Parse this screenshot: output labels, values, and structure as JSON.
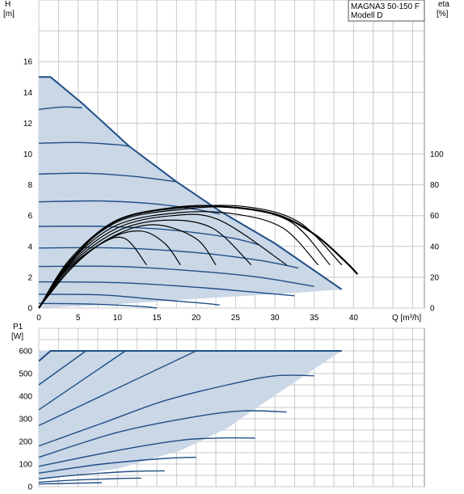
{
  "chart_data": [
    {
      "type": "line",
      "title": "MAGNA3 50-150 F",
      "subtitle": "Modell D",
      "xlabel": "Q [m³/h]",
      "ylabel": "H",
      "ylabel_unit": "[m]",
      "y2label": "eta",
      "y2label_unit": "[%]",
      "xlim": [
        0,
        49
      ],
      "ylim": [
        0,
        20
      ],
      "y2lim": [
        0,
        200
      ],
      "xticks": [
        "0",
        "5",
        "10",
        "15",
        "20",
        "25",
        "30",
        "35",
        "40"
      ],
      "yticks": [
        "0",
        "2",
        "4",
        "6",
        "8",
        "10",
        "12",
        "14",
        "16"
      ],
      "y2ticks": [
        "0",
        "20",
        "40",
        "60",
        "80",
        "100"
      ],
      "grid": true,
      "envelope": [
        [
          0,
          15
        ],
        [
          1.5,
          15
        ],
        [
          5.5,
          13.3
        ],
        [
          11.5,
          10.5
        ],
        [
          17.5,
          8.2
        ],
        [
          23,
          6.3
        ],
        [
          30,
          4.2
        ],
        [
          38.5,
          1.2
        ],
        [
          30,
          0.9
        ],
        [
          20,
          0.6
        ],
        [
          10,
          0.25
        ],
        [
          0,
          0
        ]
      ],
      "series": [
        {
          "values": [
            [
              0,
              15
            ],
            [
              1.5,
              15
            ],
            [
              5.5,
              13.3
            ],
            [
              11.5,
              10.5
            ],
            [
              17.5,
              8.2
            ],
            [
              23,
              6.3
            ],
            [
              30,
              4.2
            ],
            [
              38.5,
              1.2
            ]
          ]
        },
        {
          "values": [
            [
              0,
              12.9
            ],
            [
              3,
              13.05
            ],
            [
              5.5,
              13
            ]
          ]
        },
        {
          "values": [
            [
              0,
              10.7
            ],
            [
              5,
              10.75
            ],
            [
              10,
              10.6
            ],
            [
              11.5,
              10.5
            ]
          ]
        },
        {
          "values": [
            [
              0,
              8.7
            ],
            [
              6,
              8.75
            ],
            [
              12,
              8.55
            ],
            [
              17.5,
              8.2
            ]
          ]
        },
        {
          "values": [
            [
              0,
              6.9
            ],
            [
              8,
              6.95
            ],
            [
              15,
              6.75
            ],
            [
              20,
              6.4
            ],
            [
              23,
              6.1
            ]
          ]
        },
        {
          "values": [
            [
              0,
              5.3
            ],
            [
              8,
              5.3
            ],
            [
              16,
              5.1
            ],
            [
              24,
              4.6
            ],
            [
              28,
              4.1
            ]
          ]
        },
        {
          "values": [
            [
              0,
              3.9
            ],
            [
              10,
              3.9
            ],
            [
              20,
              3.6
            ],
            [
              28,
              3.1
            ],
            [
              33,
              2.6
            ]
          ]
        },
        {
          "values": [
            [
              0,
              2.7
            ],
            [
              10,
              2.7
            ],
            [
              20,
              2.4
            ],
            [
              28,
              2.0
            ],
            [
              35,
              1.4
            ]
          ]
        },
        {
          "values": [
            [
              0,
              1.7
            ],
            [
              10,
              1.65
            ],
            [
              20,
              1.35
            ],
            [
              28,
              1.0
            ],
            [
              32.5,
              0.8
            ]
          ]
        },
        {
          "values": [
            [
              0,
              0.9
            ],
            [
              8,
              0.85
            ],
            [
              14,
              0.6
            ],
            [
              20,
              0.35
            ],
            [
              23,
              0.2
            ]
          ]
        },
        {
          "values": [
            [
              0,
              0.3
            ],
            [
              7,
              0.25
            ],
            [
              13,
              0.1
            ],
            [
              15,
              0
            ]
          ]
        }
      ],
      "eta_series": [
        {
          "values": [
            [
              0,
              0
            ],
            [
              4,
              25
            ],
            [
              8,
              42
            ],
            [
              11,
              45
            ],
            [
              13.7,
              28
            ]
          ]
        },
        {
          "values": [
            [
              0,
              0
            ],
            [
              4,
              26
            ],
            [
              9,
              45
            ],
            [
              13,
              50
            ],
            [
              16,
              42
            ],
            [
              18,
              28
            ]
          ]
        },
        {
          "values": [
            [
              0,
              0
            ],
            [
              4,
              27
            ],
            [
              10,
              48
            ],
            [
              15,
              54
            ],
            [
              20,
              45
            ],
            [
              22.5,
              28
            ]
          ]
        },
        {
          "values": [
            [
              0,
              0
            ],
            [
              4,
              28
            ],
            [
              10,
              50
            ],
            [
              16,
              57
            ],
            [
              22,
              52
            ],
            [
              27,
              28
            ]
          ]
        },
        {
          "values": [
            [
              0,
              0
            ],
            [
              4,
              29
            ],
            [
              10,
              52
            ],
            [
              17,
              60
            ],
            [
              23,
              57
            ],
            [
              31.5,
              28
            ]
          ]
        },
        {
          "values": [
            [
              0,
              0
            ],
            [
              4,
              30
            ],
            [
              10,
              54
            ],
            [
              18,
              62
            ],
            [
              25,
              61
            ],
            [
              31,
              52
            ],
            [
              35.5,
              28
            ]
          ]
        },
        {
          "values": [
            [
              0,
              0
            ],
            [
              4,
              31
            ],
            [
              10,
              56
            ],
            [
              18,
              64
            ],
            [
              25,
              65
            ],
            [
              32,
              56
            ],
            [
              37,
              28
            ]
          ]
        },
        {
          "values": [
            [
              0,
              0
            ],
            [
              4,
              32
            ],
            [
              10,
              57
            ],
            [
              18,
              65
            ],
            [
              26,
              66
            ],
            [
              33,
              56
            ],
            [
              38.5,
              28
            ]
          ]
        },
        {
          "values": [
            [
              0,
              0
            ],
            [
              5,
              36
            ],
            [
              10,
              57
            ],
            [
              17,
              65
            ],
            [
              23,
              66
            ],
            [
              30,
              61
            ],
            [
              35,
              48
            ],
            [
              39,
              30
            ],
            [
              40.5,
              22
            ]
          ]
        }
      ]
    },
    {
      "type": "line",
      "ylabel": "P1",
      "ylabel_unit": "[W]",
      "xlim": [
        0,
        49
      ],
      "ylim": [
        0,
        700
      ],
      "yticks": [
        "0",
        "100",
        "200",
        "300",
        "400",
        "500",
        "600"
      ],
      "grid": true,
      "envelope": [
        [
          0,
          600
        ],
        [
          38.5,
          600
        ],
        [
          35,
          520
        ],
        [
          29,
          380
        ],
        [
          24,
          260
        ],
        [
          18,
          160
        ],
        [
          10,
          80
        ],
        [
          0,
          30
        ]
      ],
      "series": [
        {
          "values": [
            [
              0,
              555
            ],
            [
              1.5,
              600
            ],
            [
              38.5,
              600
            ]
          ]
        },
        {
          "values": [
            [
              0,
              450
            ],
            [
              6,
              600
            ]
          ]
        },
        {
          "values": [
            [
              0,
              340
            ],
            [
              11,
              600
            ]
          ]
        },
        {
          "values": [
            [
              0,
              270
            ],
            [
              20,
              600
            ]
          ]
        },
        {
          "values": [
            [
              0,
              180
            ],
            [
              8,
              280
            ],
            [
              16,
              380
            ],
            [
              24,
              450
            ],
            [
              30,
              490
            ],
            [
              35,
              490
            ]
          ]
        },
        {
          "values": [
            [
              0,
              130
            ],
            [
              10,
              240
            ],
            [
              20,
              310
            ],
            [
              26,
              335
            ],
            [
              31.5,
              330
            ]
          ]
        },
        {
          "values": [
            [
              0,
              90
            ],
            [
              10,
              160
            ],
            [
              18,
              205
            ],
            [
              23,
              215
            ],
            [
              27.5,
              215
            ]
          ]
        },
        {
          "values": [
            [
              0,
              60
            ],
            [
              8,
              100
            ],
            [
              16,
              125
            ],
            [
              20,
              130
            ]
          ]
        },
        {
          "values": [
            [
              0,
              35
            ],
            [
              6,
              55
            ],
            [
              12,
              68
            ],
            [
              16,
              70
            ]
          ]
        },
        {
          "values": [
            [
              0,
              20
            ],
            [
              5,
              30
            ],
            [
              10,
              36
            ],
            [
              13,
              38
            ]
          ]
        },
        {
          "values": [
            [
              0,
              12
            ],
            [
              4,
              15
            ],
            [
              8,
              18
            ]
          ]
        }
      ]
    }
  ]
}
